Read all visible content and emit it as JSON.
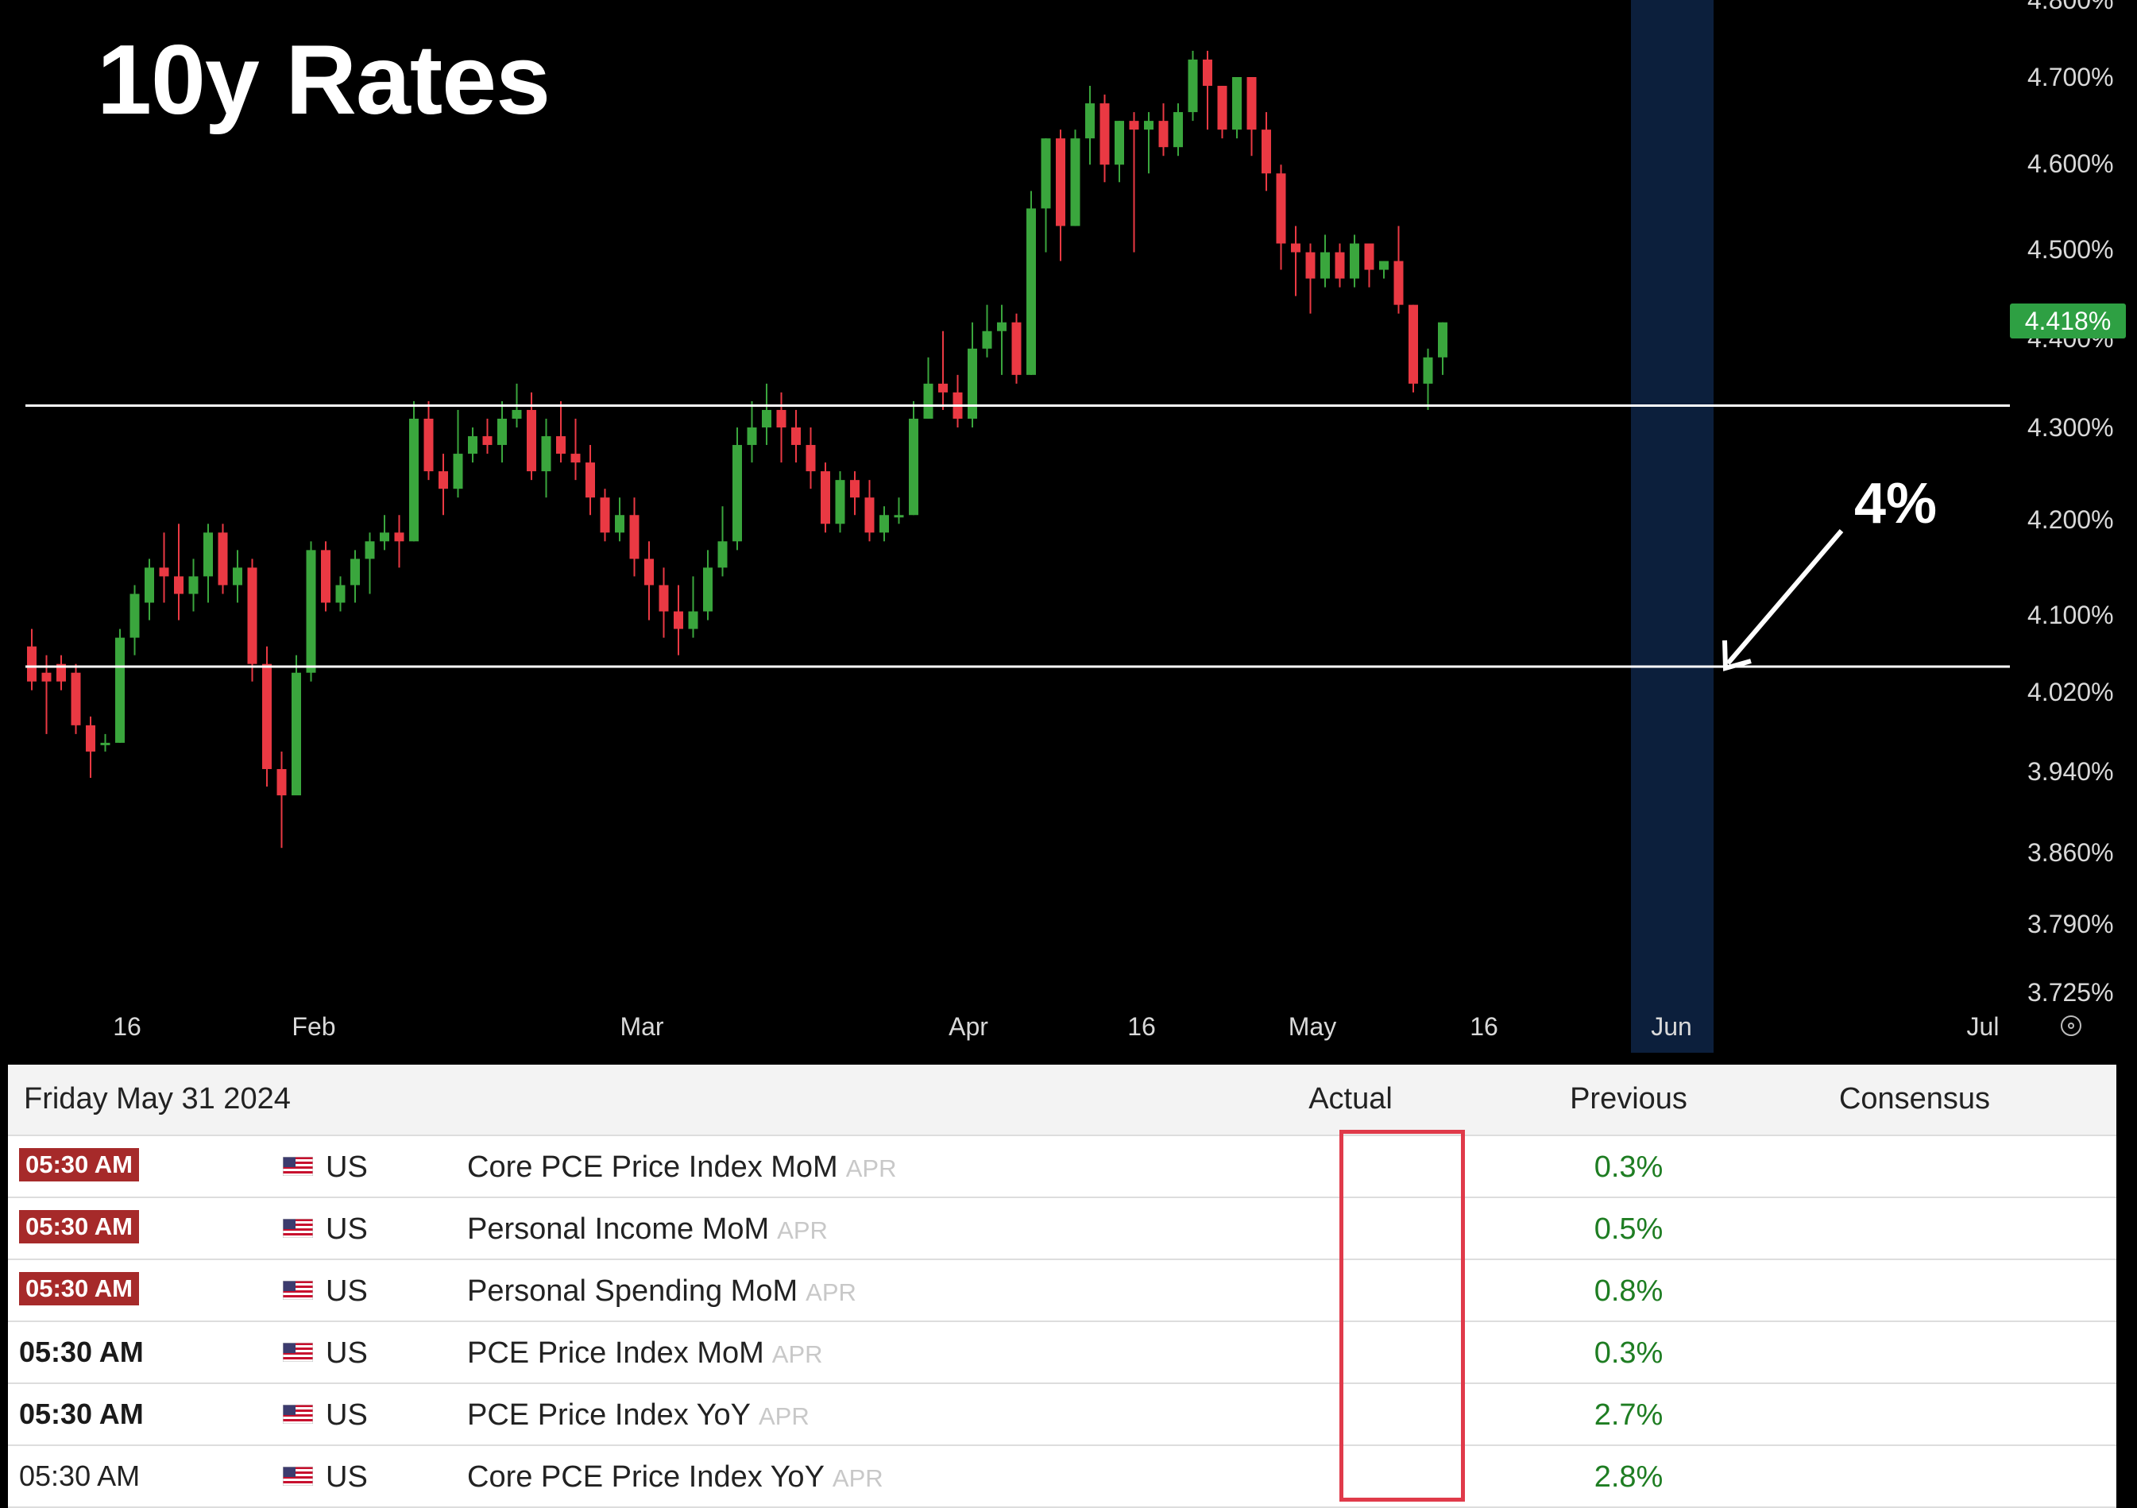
{
  "chart_data": {
    "type": "candlestick",
    "title": "10y Rates",
    "y_tick_labels": [
      "4.800%",
      "4.700%",
      "4.600%",
      "4.500%",
      "4.400%",
      "4.300%",
      "4.200%",
      "4.100%",
      "4.020%",
      "3.940%",
      "3.860%",
      "3.790%",
      "3.725%"
    ],
    "x_tick_labels": [
      "16",
      "Feb",
      "Mar",
      "Apr",
      "16",
      "May",
      "16",
      "Jun",
      "Jul"
    ],
    "current_price_label": "4.418%",
    "annotation_text": "4%",
    "horizontal_lines": [
      4.325,
      4.027
    ],
    "highlight_period": "Jun",
    "colors": {
      "up": "#3aa63d",
      "down": "#ea3943",
      "highlight": "#0c1f3c",
      "current_price": "#2ea043"
    },
    "candles": [
      [
        4.05,
        4.01,
        4.07,
        4.0
      ],
      [
        4.02,
        4.01,
        4.04,
        3.95
      ],
      [
        4.03,
        4.01,
        4.04,
        4.0
      ],
      [
        4.02,
        3.96,
        4.03,
        3.95
      ],
      [
        3.96,
        3.93,
        3.97,
        3.9
      ],
      [
        3.94,
        3.94,
        3.95,
        3.93
      ],
      [
        3.94,
        4.06,
        4.07,
        3.94
      ],
      [
        4.06,
        4.11,
        4.12,
        4.04
      ],
      [
        4.1,
        4.14,
        4.15,
        4.08
      ],
      [
        4.14,
        4.13,
        4.18,
        4.1
      ],
      [
        4.13,
        4.11,
        4.19,
        4.08
      ],
      [
        4.11,
        4.13,
        4.15,
        4.09
      ],
      [
        4.13,
        4.18,
        4.19,
        4.1
      ],
      [
        4.18,
        4.12,
        4.19,
        4.11
      ],
      [
        4.12,
        4.14,
        4.16,
        4.1
      ],
      [
        4.14,
        4.03,
        4.15,
        4.01
      ],
      [
        4.03,
        3.91,
        4.05,
        3.89
      ],
      [
        3.91,
        3.88,
        3.93,
        3.82
      ],
      [
        3.88,
        4.02,
        4.04,
        3.88
      ],
      [
        4.02,
        4.16,
        4.17,
        4.01
      ],
      [
        4.16,
        4.1,
        4.17,
        4.09
      ],
      [
        4.1,
        4.12,
        4.13,
        4.09
      ],
      [
        4.12,
        4.15,
        4.16,
        4.1
      ],
      [
        4.15,
        4.17,
        4.18,
        4.11
      ],
      [
        4.17,
        4.18,
        4.2,
        4.16
      ],
      [
        4.18,
        4.17,
        4.2,
        4.14
      ],
      [
        4.17,
        4.31,
        4.33,
        4.17
      ],
      [
        4.31,
        4.25,
        4.33,
        4.24
      ],
      [
        4.25,
        4.23,
        4.27,
        4.2
      ],
      [
        4.23,
        4.27,
        4.32,
        4.22
      ],
      [
        4.27,
        4.29,
        4.3,
        4.26
      ],
      [
        4.29,
        4.28,
        4.31,
        4.27
      ],
      [
        4.28,
        4.31,
        4.33,
        4.26
      ],
      [
        4.31,
        4.32,
        4.35,
        4.3
      ],
      [
        4.32,
        4.25,
        4.34,
        4.24
      ],
      [
        4.25,
        4.29,
        4.31,
        4.22
      ],
      [
        4.29,
        4.27,
        4.33,
        4.26
      ],
      [
        4.27,
        4.26,
        4.31,
        4.24
      ],
      [
        4.26,
        4.22,
        4.28,
        4.2
      ],
      [
        4.22,
        4.18,
        4.23,
        4.17
      ],
      [
        4.18,
        4.2,
        4.22,
        4.17
      ],
      [
        4.2,
        4.15,
        4.22,
        4.13
      ],
      [
        4.15,
        4.12,
        4.17,
        4.08
      ],
      [
        4.12,
        4.09,
        4.14,
        4.06
      ],
      [
        4.09,
        4.07,
        4.12,
        4.04
      ],
      [
        4.07,
        4.09,
        4.13,
        4.06
      ],
      [
        4.09,
        4.14,
        4.16,
        4.08
      ],
      [
        4.14,
        4.17,
        4.21,
        4.13
      ],
      [
        4.17,
        4.28,
        4.3,
        4.16
      ],
      [
        4.28,
        4.3,
        4.33,
        4.26
      ],
      [
        4.3,
        4.32,
        4.35,
        4.28
      ],
      [
        4.32,
        4.3,
        4.34,
        4.26
      ],
      [
        4.3,
        4.28,
        4.32,
        4.26
      ],
      [
        4.28,
        4.25,
        4.3,
        4.23
      ],
      [
        4.25,
        4.19,
        4.26,
        4.18
      ],
      [
        4.19,
        4.24,
        4.25,
        4.18
      ],
      [
        4.24,
        4.22,
        4.25,
        4.2
      ],
      [
        4.22,
        4.18,
        4.24,
        4.17
      ],
      [
        4.18,
        4.2,
        4.21,
        4.17
      ],
      [
        4.2,
        4.2,
        4.22,
        4.19
      ],
      [
        4.2,
        4.31,
        4.33,
        4.2
      ],
      [
        4.31,
        4.35,
        4.38,
        4.31
      ],
      [
        4.35,
        4.34,
        4.41,
        4.32
      ],
      [
        4.34,
        4.31,
        4.36,
        4.3
      ],
      [
        4.31,
        4.39,
        4.42,
        4.3
      ],
      [
        4.39,
        4.41,
        4.44,
        4.38
      ],
      [
        4.41,
        4.42,
        4.44,
        4.36
      ],
      [
        4.42,
        4.36,
        4.43,
        4.35
      ],
      [
        4.36,
        4.55,
        4.57,
        4.36
      ],
      [
        4.55,
        4.63,
        4.63,
        4.5
      ],
      [
        4.63,
        4.53,
        4.64,
        4.49
      ],
      [
        4.53,
        4.63,
        4.64,
        4.53
      ],
      [
        4.63,
        4.67,
        4.69,
        4.6
      ],
      [
        4.67,
        4.6,
        4.68,
        4.58
      ],
      [
        4.6,
        4.65,
        4.65,
        4.58
      ],
      [
        4.65,
        4.64,
        4.66,
        4.5
      ],
      [
        4.64,
        4.65,
        4.66,
        4.59
      ],
      [
        4.65,
        4.62,
        4.67,
        4.61
      ],
      [
        4.62,
        4.66,
        4.67,
        4.61
      ],
      [
        4.66,
        4.72,
        4.73,
        4.65
      ],
      [
        4.72,
        4.69,
        4.73,
        4.64
      ],
      [
        4.69,
        4.64,
        4.69,
        4.63
      ],
      [
        4.64,
        4.7,
        4.7,
        4.63
      ],
      [
        4.7,
        4.64,
        4.7,
        4.61
      ],
      [
        4.64,
        4.59,
        4.66,
        4.57
      ],
      [
        4.59,
        4.51,
        4.6,
        4.48
      ],
      [
        4.51,
        4.5,
        4.53,
        4.45
      ],
      [
        4.5,
        4.47,
        4.51,
        4.43
      ],
      [
        4.47,
        4.5,
        4.52,
        4.46
      ],
      [
        4.5,
        4.47,
        4.51,
        4.46
      ],
      [
        4.47,
        4.51,
        4.52,
        4.46
      ],
      [
        4.51,
        4.48,
        4.51,
        4.46
      ],
      [
        4.48,
        4.49,
        4.49,
        4.47
      ],
      [
        4.49,
        4.44,
        4.53,
        4.43
      ],
      [
        4.44,
        4.35,
        4.44,
        4.34
      ],
      [
        4.35,
        4.38,
        4.39,
        4.32
      ],
      [
        4.38,
        4.42,
        4.42,
        4.36
      ]
    ]
  },
  "calendar": {
    "date_header": "Friday May 31 2024",
    "col_actual": "Actual",
    "col_previous": "Previous",
    "col_consensus": "Consensus",
    "rows": [
      {
        "time": "05:30 AM",
        "country": "US",
        "event": "Core PCE Price Index MoM",
        "period": "APR",
        "previous": "0.3%"
      },
      {
        "time": "05:30 AM",
        "country": "US",
        "event": "Personal Income MoM",
        "period": "APR",
        "previous": "0.5%"
      },
      {
        "time": "05:30 AM",
        "country": "US",
        "event": "Personal Spending MoM",
        "period": "APR",
        "previous": "0.8%"
      },
      {
        "time": "05:30 AM",
        "country": "US",
        "event": "PCE Price Index MoM",
        "period": "APR",
        "previous": "0.3%"
      },
      {
        "time": "05:30 AM",
        "country": "US",
        "event": "PCE Price Index YoY",
        "period": "APR",
        "previous": "2.7%"
      },
      {
        "time": "05:30 AM",
        "country": "US",
        "event": "Core PCE Price Index YoY",
        "period": "APR",
        "previous": "2.8%"
      }
    ]
  }
}
